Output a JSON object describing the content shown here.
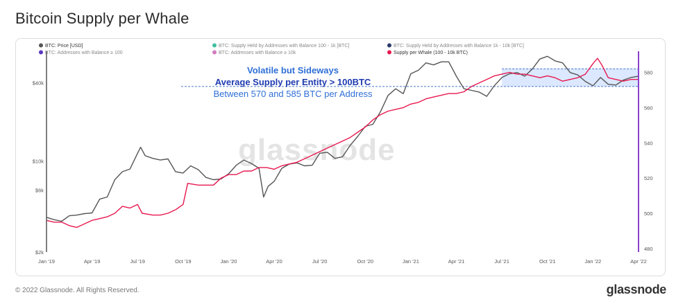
{
  "page": {
    "title": "Bitcoin Supply per Whale",
    "footer_copyright": "© 2022 Glassnode. All Rights Reserved.",
    "footer_brand": "glassnode",
    "watermark": "glassnode"
  },
  "chart_data": {
    "type": "line",
    "title": "Bitcoin Supply per Whale",
    "legend": [
      {
        "label": "BTC: Price [USD]",
        "color": "#555555",
        "active": true
      },
      {
        "label": "BTC: Supply Held by Addresses with Balance 100 - 1k [BTC]",
        "color": "#3fbfa0",
        "active": false
      },
      {
        "label": "BTC: Supply Held by Addresses with Balance 1k - 10k [BTC]",
        "color": "#2a3a6b",
        "active": false
      },
      {
        "label": "BTC: Addresses with Balance ≥ 100",
        "color": "#5a38c0",
        "active": false
      },
      {
        "label": "BTC: Addresses with Balance ≥ 10k",
        "color": "#d47ac0",
        "active": false
      },
      {
        "label": "Supply per Whale (100 - 10k BTC)",
        "color": "#e8174f",
        "active": true
      }
    ],
    "x_tick_labels": [
      "Jan '19",
      "Apr '19",
      "Jul '19",
      "Oct '19",
      "Jan '20",
      "Apr '20",
      "Jul '20",
      "Oct '20",
      "Jan '21",
      "Apr '21",
      "Jul '21",
      "Oct '21",
      "Jan '22",
      "Apr '22"
    ],
    "x_range_months": [
      0,
      39
    ],
    "y_left": {
      "scale": "log",
      "range": [
        2000,
        70000
      ],
      "tick_labels": [
        "$2k",
        "$6k",
        "$10k",
        "$40k"
      ],
      "tick_values": [
        2000,
        6000,
        10000,
        40000
      ]
    },
    "y_right": {
      "scale": "linear",
      "range": [
        478,
        592
      ],
      "tick_labels": [
        "480",
        "500",
        "520",
        "540",
        "560",
        "580"
      ],
      "tick_values": [
        480,
        500,
        520,
        540,
        560,
        580
      ]
    },
    "series": [
      {
        "name": "BTC: Price [USD]",
        "axis": "left",
        "color": "#555555",
        "points": [
          [
            0,
            3700
          ],
          [
            0.5,
            3550
          ],
          [
            1,
            3450
          ],
          [
            1.5,
            3800
          ],
          [
            2,
            3850
          ],
          [
            2.5,
            3950
          ],
          [
            3,
            4000
          ],
          [
            3.5,
            5100
          ],
          [
            4,
            5300
          ],
          [
            4.5,
            7200
          ],
          [
            5,
            8300
          ],
          [
            5.5,
            8700
          ],
          [
            6,
            11500
          ],
          [
            6.2,
            12800
          ],
          [
            6.5,
            11000
          ],
          [
            7,
            10500
          ],
          [
            7.5,
            10200
          ],
          [
            8,
            10400
          ],
          [
            8.5,
            8300
          ],
          [
            9,
            8100
          ],
          [
            9.5,
            9200
          ],
          [
            10,
            8600
          ],
          [
            10.5,
            7500
          ],
          [
            11,
            7200
          ],
          [
            11.5,
            7300
          ],
          [
            12,
            8000
          ],
          [
            12.5,
            9300
          ],
          [
            13,
            10200
          ],
          [
            13.5,
            9600
          ],
          [
            14,
            8800
          ],
          [
            14.3,
            5300
          ],
          [
            14.6,
            6400
          ],
          [
            15,
            7000
          ],
          [
            15.5,
            8800
          ],
          [
            16,
            9500
          ],
          [
            16.5,
            9700
          ],
          [
            17,
            9200
          ],
          [
            17.5,
            9300
          ],
          [
            18,
            11500
          ],
          [
            18.5,
            11700
          ],
          [
            19,
            10500
          ],
          [
            19.5,
            10800
          ],
          [
            20,
            13200
          ],
          [
            20.5,
            15500
          ],
          [
            21,
            18500
          ],
          [
            21.5,
            19200
          ],
          [
            22,
            24000
          ],
          [
            22.5,
            32000
          ],
          [
            23,
            36000
          ],
          [
            23.5,
            33000
          ],
          [
            24,
            47000
          ],
          [
            24.5,
            50000
          ],
          [
            25,
            57000
          ],
          [
            25.5,
            55000
          ],
          [
            26,
            58000
          ],
          [
            26.5,
            58000
          ],
          [
            27,
            45000
          ],
          [
            27.5,
            36000
          ],
          [
            28,
            35000
          ],
          [
            28.5,
            34000
          ],
          [
            29,
            31500
          ],
          [
            29.5,
            38000
          ],
          [
            30,
            44000
          ],
          [
            30.5,
            47000
          ],
          [
            31,
            48000
          ],
          [
            31.5,
            45000
          ],
          [
            32,
            51000
          ],
          [
            32.5,
            61000
          ],
          [
            33,
            64000
          ],
          [
            33.5,
            59000
          ],
          [
            34,
            57000
          ],
          [
            34.5,
            48000
          ],
          [
            35,
            46000
          ],
          [
            35.5,
            41000
          ],
          [
            36,
            38000
          ],
          [
            36.5,
            44000
          ],
          [
            37,
            39000
          ],
          [
            37.5,
            38500
          ],
          [
            38,
            42000
          ],
          [
            38.5,
            44000
          ],
          [
            39,
            45000
          ]
        ]
      },
      {
        "name": "Supply per Whale (100 - 10k BTC)",
        "axis": "right",
        "color": "#e8174f",
        "points": [
          [
            0,
            496
          ],
          [
            0.5,
            495
          ],
          [
            1,
            495
          ],
          [
            1.5,
            493
          ],
          [
            2,
            492
          ],
          [
            2.5,
            494
          ],
          [
            3,
            496
          ],
          [
            3.5,
            497
          ],
          [
            4,
            498
          ],
          [
            4.5,
            500
          ],
          [
            5,
            504
          ],
          [
            5.5,
            503
          ],
          [
            6,
            505
          ],
          [
            6.3,
            500
          ],
          [
            7,
            499
          ],
          [
            7.5,
            499
          ],
          [
            8,
            500
          ],
          [
            8.5,
            502
          ],
          [
            9,
            505
          ],
          [
            9.3,
            517
          ],
          [
            10,
            516
          ],
          [
            10.5,
            516
          ],
          [
            11,
            516
          ],
          [
            11.5,
            520
          ],
          [
            12,
            522
          ],
          [
            12.5,
            522
          ],
          [
            13,
            524
          ],
          [
            13.5,
            524
          ],
          [
            14,
            526
          ],
          [
            14.5,
            526
          ],
          [
            15,
            525
          ],
          [
            15.5,
            527
          ],
          [
            16,
            528
          ],
          [
            16.5,
            529
          ],
          [
            17,
            531
          ],
          [
            17.5,
            533
          ],
          [
            18,
            535
          ],
          [
            18.5,
            537
          ],
          [
            19,
            539
          ],
          [
            19.5,
            541
          ],
          [
            20,
            543
          ],
          [
            20.5,
            546
          ],
          [
            21,
            549
          ],
          [
            21.5,
            553
          ],
          [
            22,
            556
          ],
          [
            22.5,
            558
          ],
          [
            23,
            559
          ],
          [
            23.5,
            560
          ],
          [
            24,
            562
          ],
          [
            24.5,
            563
          ],
          [
            25,
            565
          ],
          [
            25.5,
            566
          ],
          [
            26,
            567
          ],
          [
            26.5,
            568
          ],
          [
            27,
            568
          ],
          [
            27.5,
            569
          ],
          [
            28,
            572
          ],
          [
            28.5,
            574
          ],
          [
            29,
            576
          ],
          [
            29.5,
            578
          ],
          [
            30,
            579
          ],
          [
            30.5,
            580
          ],
          [
            31,
            579
          ],
          [
            31.5,
            579
          ],
          [
            32,
            578
          ],
          [
            32.5,
            577
          ],
          [
            33,
            578
          ],
          [
            33.5,
            577
          ],
          [
            34,
            575
          ],
          [
            34.5,
            576
          ],
          [
            35,
            577
          ],
          [
            35.5,
            579
          ],
          [
            36,
            585
          ],
          [
            36.3,
            588
          ],
          [
            36.6,
            584
          ],
          [
            37,
            577
          ],
          [
            37.5,
            576
          ],
          [
            38,
            575
          ],
          [
            38.5,
            576
          ],
          [
            39,
            576
          ]
        ]
      }
    ],
    "annotations": {
      "line1": "Volatile but Sideways",
      "line2": "Average Supply per Entity > 100BTC",
      "line3": "Between 570 and 585 BTC per Address",
      "band_low": 572,
      "band_high": 582,
      "band_start_month": 30,
      "band_end_month": 39,
      "colors": {
        "line1": "#2f6fd6",
        "line2": "#1f3bb0",
        "line3": "#2f6fd6",
        "band": "#cfe0ff",
        "band_border": "#4a78c8"
      }
    },
    "right_axis_color": "#8a3fc9",
    "grid": false
  }
}
